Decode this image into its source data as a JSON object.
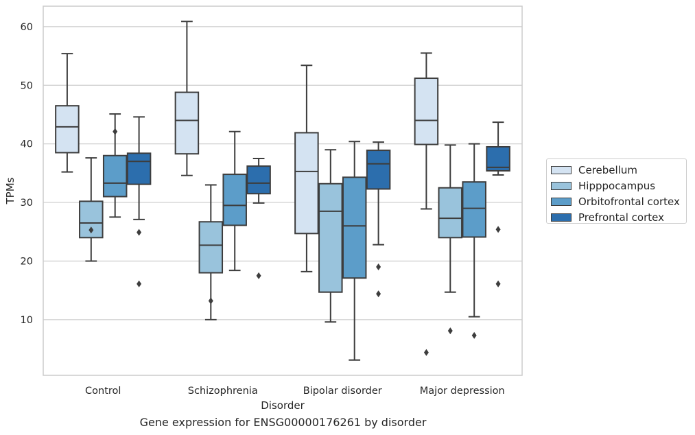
{
  "chart_data": {
    "type": "box",
    "title": "",
    "caption": "Gene expression for ENSG00000176261 by disorder",
    "xlabel": "Disorder",
    "ylabel": "TPMs",
    "ylim": [
      0.5,
      63.5
    ],
    "yticks": [
      10,
      20,
      30,
      40,
      50,
      60
    ],
    "grid": "horizontal",
    "legend_position": "right",
    "categories": [
      "Control",
      "Schizophrenia",
      "Bipolar disorder",
      "Major depression"
    ],
    "series": [
      {
        "name": "Cerebellum",
        "color": "#d4e3f2",
        "boxes": [
          {
            "whisker_low": 35.2,
            "q1": 38.5,
            "median": 42.9,
            "q3": 46.5,
            "whisker_high": 55.4,
            "outliers": []
          },
          {
            "whisker_low": 34.6,
            "q1": 38.3,
            "median": 44.0,
            "q3": 48.8,
            "whisker_high": 60.9,
            "outliers": []
          },
          {
            "whisker_low": 18.2,
            "q1": 24.7,
            "median": 35.3,
            "q3": 41.9,
            "whisker_high": 53.4,
            "outliers": []
          },
          {
            "whisker_low": 28.9,
            "q1": 39.9,
            "median": 44.0,
            "q3": 51.2,
            "whisker_high": 55.5,
            "outliers": [
              4.4
            ]
          }
        ]
      },
      {
        "name": "Hipppocampus",
        "color": "#99c3dc",
        "boxes": [
          {
            "whisker_low": 20.0,
            "q1": 24.0,
            "median": 26.5,
            "q3": 30.2,
            "whisker_high": 37.6,
            "outliers": [
              25.3
            ]
          },
          {
            "whisker_low": 10.0,
            "q1": 18.0,
            "median": 22.7,
            "q3": 26.7,
            "whisker_high": 33.0,
            "outliers": [
              13.2
            ]
          },
          {
            "whisker_low": 9.6,
            "q1": 14.7,
            "median": 28.5,
            "q3": 33.2,
            "whisker_high": 39.0,
            "outliers": []
          },
          {
            "whisker_low": 14.7,
            "q1": 24.0,
            "median": 27.3,
            "q3": 32.5,
            "whisker_high": 39.8,
            "outliers": [
              8.1
            ]
          }
        ]
      },
      {
        "name": "Orbitofrontal cortex",
        "color": "#5c9dc9",
        "boxes": [
          {
            "whisker_low": 27.5,
            "q1": 31.0,
            "median": 33.3,
            "q3": 38.0,
            "whisker_high": 45.1,
            "outliers": [
              42.1
            ]
          },
          {
            "whisker_low": 18.4,
            "q1": 26.1,
            "median": 29.5,
            "q3": 34.8,
            "whisker_high": 42.1,
            "outliers": []
          },
          {
            "whisker_low": 3.1,
            "q1": 17.1,
            "median": 26.0,
            "q3": 34.3,
            "whisker_high": 40.4,
            "outliers": []
          },
          {
            "whisker_low": 10.5,
            "q1": 24.1,
            "median": 29.0,
            "q3": 33.5,
            "whisker_high": 40.0,
            "outliers": [
              7.3
            ]
          }
        ]
      },
      {
        "name": "Prefrontal cortex",
        "color": "#2c6ead",
        "boxes": [
          {
            "whisker_low": 27.1,
            "q1": 33.1,
            "median": 37.0,
            "q3": 38.4,
            "whisker_high": 44.6,
            "outliers": [
              24.9,
              16.1
            ]
          },
          {
            "whisker_low": 29.9,
            "q1": 31.5,
            "median": 33.3,
            "q3": 36.2,
            "whisker_high": 37.5,
            "outliers": [
              17.5
            ]
          },
          {
            "whisker_low": 22.8,
            "q1": 32.3,
            "median": 36.6,
            "q3": 38.9,
            "whisker_high": 40.3,
            "outliers": [
              19.0,
              14.4
            ]
          },
          {
            "whisker_low": 34.7,
            "q1": 35.4,
            "median": 36.0,
            "q3": 39.5,
            "whisker_high": 43.7,
            "outliers": [
              25.4,
              16.1
            ]
          }
        ]
      }
    ]
  }
}
